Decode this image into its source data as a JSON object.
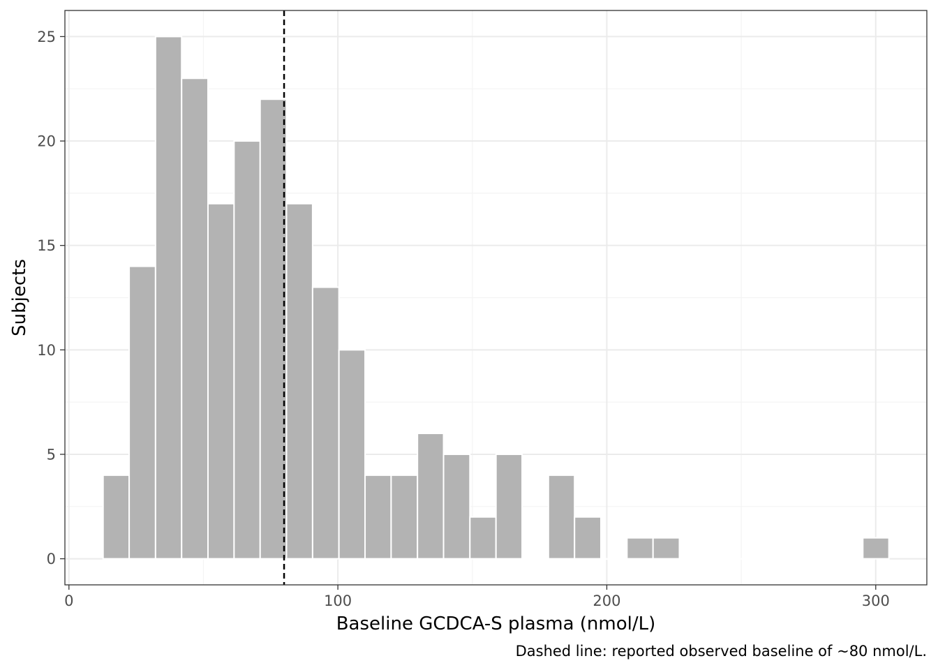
{
  "chart_data": {
    "type": "bar",
    "subtype": "histogram",
    "title": "",
    "xlabel": "Baseline GCDCA-S plasma (nmol/L)",
    "ylabel": "Subjects",
    "caption": "Dashed line: reported observed baseline of ~80 nmol/L.",
    "xlim": [
      -1.5,
      319
    ],
    "ylim": [
      -1.25,
      26.25
    ],
    "x_ticks": [
      {
        "value": 0,
        "label": "0"
      },
      {
        "value": 100,
        "label": "100"
      },
      {
        "value": 200,
        "label": "200"
      },
      {
        "value": 300,
        "label": "300"
      }
    ],
    "y_ticks": [
      {
        "value": 0,
        "label": "0"
      },
      {
        "value": 5,
        "label": "5"
      },
      {
        "value": 10,
        "label": "10"
      },
      {
        "value": 15,
        "label": "15"
      },
      {
        "value": 20,
        "label": "20"
      },
      {
        "value": 25,
        "label": "25"
      }
    ],
    "bins": [
      {
        "x0": 12.7,
        "x1": 22.4,
        "count": 4
      },
      {
        "x0": 22.4,
        "x1": 32.2,
        "count": 14
      },
      {
        "x0": 32.2,
        "x1": 41.9,
        "count": 25
      },
      {
        "x0": 41.9,
        "x1": 51.7,
        "count": 23
      },
      {
        "x0": 51.7,
        "x1": 61.4,
        "count": 17
      },
      {
        "x0": 61.4,
        "x1": 71.1,
        "count": 20
      },
      {
        "x0": 71.1,
        "x1": 80.9,
        "count": 22
      },
      {
        "x0": 80.9,
        "x1": 90.6,
        "count": 17
      },
      {
        "x0": 90.6,
        "x1": 100.4,
        "count": 13
      },
      {
        "x0": 100.4,
        "x1": 110.1,
        "count": 10
      },
      {
        "x0": 110.1,
        "x1": 119.8,
        "count": 4
      },
      {
        "x0": 119.8,
        "x1": 129.6,
        "count": 4
      },
      {
        "x0": 129.6,
        "x1": 139.3,
        "count": 6
      },
      {
        "x0": 139.3,
        "x1": 149.1,
        "count": 5
      },
      {
        "x0": 149.1,
        "x1": 158.8,
        "count": 2
      },
      {
        "x0": 158.8,
        "x1": 168.5,
        "count": 5
      },
      {
        "x0": 168.5,
        "x1": 178.3,
        "count": 0
      },
      {
        "x0": 178.3,
        "x1": 188.0,
        "count": 4
      },
      {
        "x0": 188.0,
        "x1": 197.8,
        "count": 2
      },
      {
        "x0": 197.8,
        "x1": 207.5,
        "count": 0
      },
      {
        "x0": 207.5,
        "x1": 217.2,
        "count": 1
      },
      {
        "x0": 217.2,
        "x1": 227.0,
        "count": 1
      },
      {
        "x0": 227.0,
        "x1": 236.7,
        "count": 0
      },
      {
        "x0": 236.7,
        "x1": 246.5,
        "count": 0
      },
      {
        "x0": 246.5,
        "x1": 256.2,
        "count": 0
      },
      {
        "x0": 256.2,
        "x1": 265.9,
        "count": 0
      },
      {
        "x0": 265.9,
        "x1": 275.7,
        "count": 0
      },
      {
        "x0": 275.7,
        "x1": 285.4,
        "count": 0
      },
      {
        "x0": 285.4,
        "x1": 295.2,
        "count": 0
      },
      {
        "x0": 295.2,
        "x1": 304.9,
        "count": 1
      }
    ],
    "reference_line": {
      "x": 80,
      "style": "dashed"
    },
    "grid": true,
    "colors": {
      "bar_fill": "#b3b3b3",
      "bar_outline": "#ffffff",
      "grid_major": "#ebebeb",
      "grid_minor": "#f4f4f4",
      "panel_border": "#333333",
      "reference_line": "#000000"
    }
  }
}
